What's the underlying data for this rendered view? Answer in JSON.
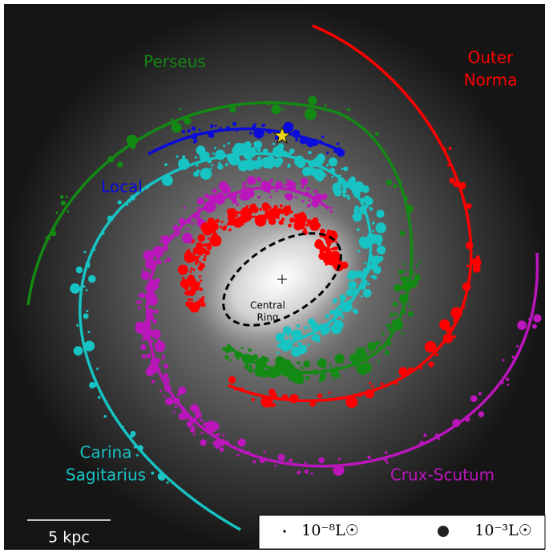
{
  "labels": {
    "perseus": "Perseus",
    "outer_norma": [
      "Outer",
      "Norma"
    ],
    "local": "Local",
    "central_ring": [
      "Central",
      "Ring"
    ],
    "carina_sagitarius": [
      "Carina",
      "Sagitarius"
    ],
    "crux_scutum": "Crux-Scutum"
  },
  "scale_bar": "5 kpc",
  "legend": [
    "10⁻⁸L☉",
    "10⁻³L☉"
  ]
}
